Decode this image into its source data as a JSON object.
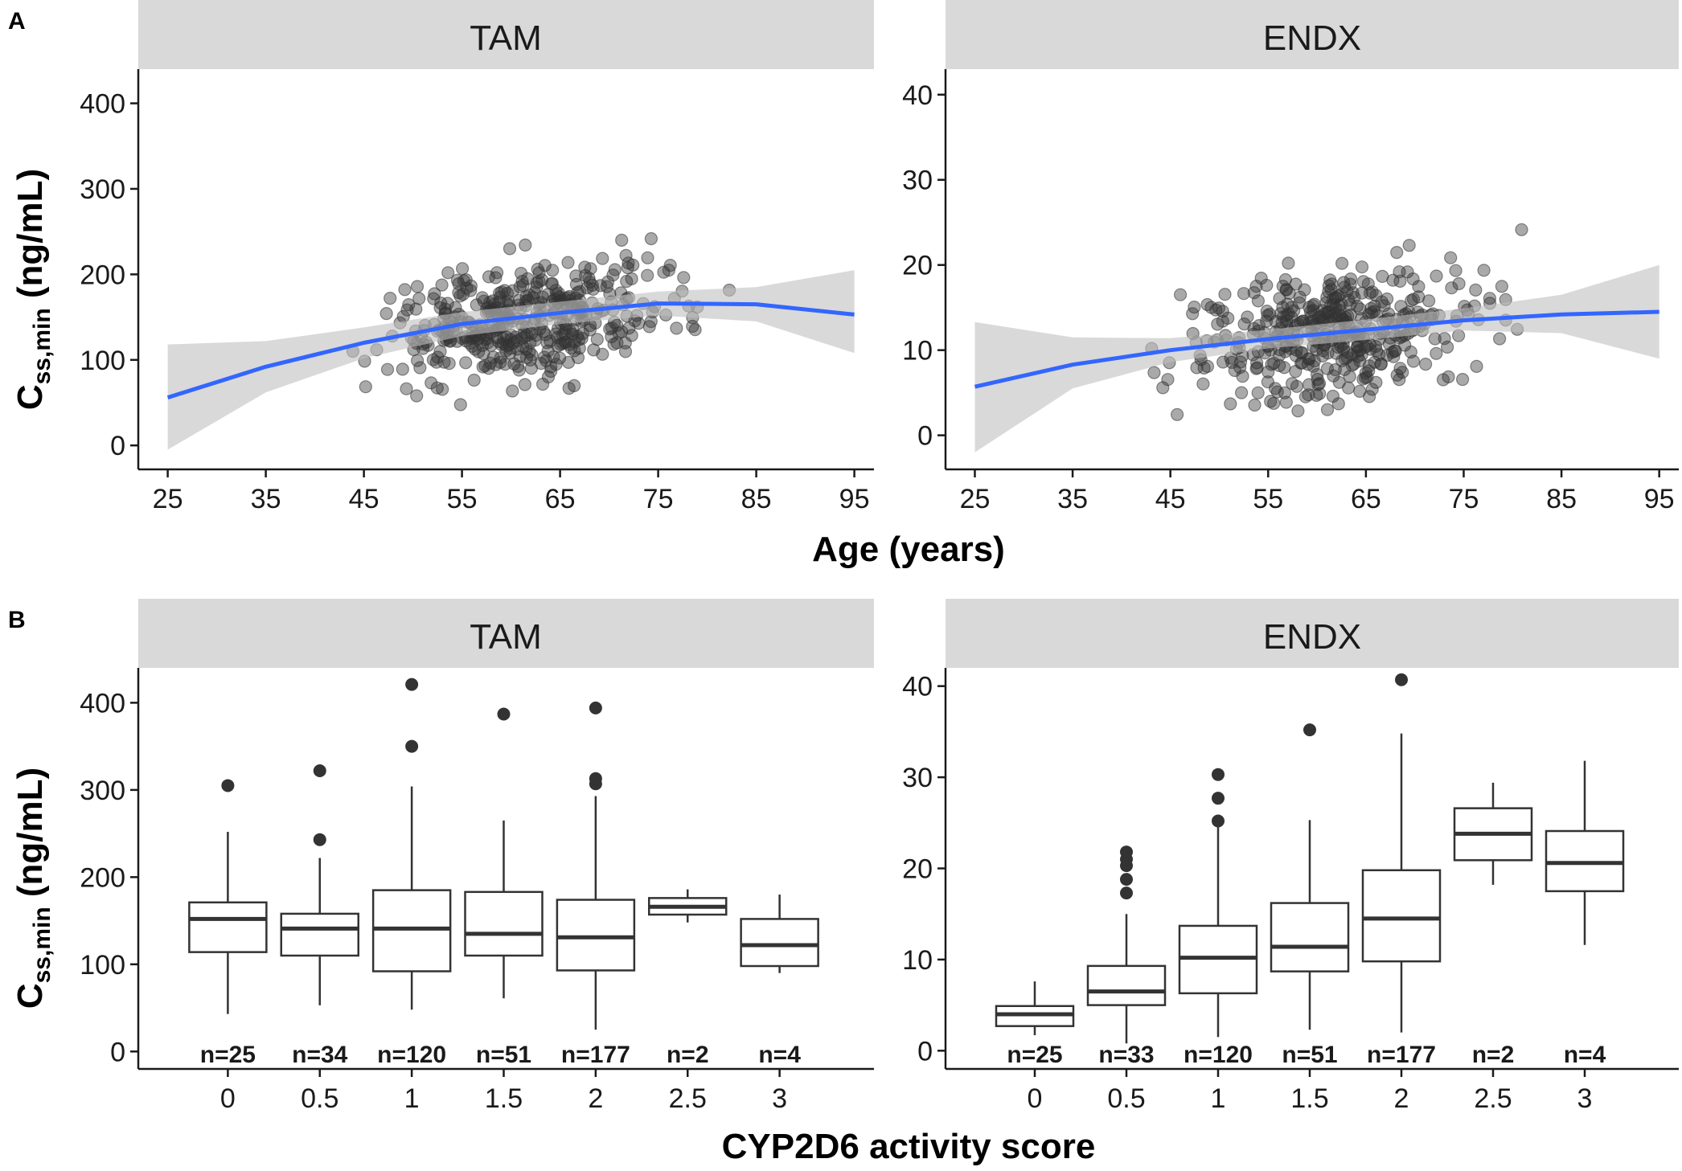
{
  "figure": {
    "panel_a_label": "A",
    "panel_b_label": "B",
    "y_label_main": "C",
    "y_label_sub": "ss,min",
    "y_label_unit": " (ng/mL)",
    "x_label_top": "Age (years)",
    "x_label_bottom": "CYP2D6 activity score",
    "colors": {
      "strip": "#d9d9d9",
      "smooth": "#3366ff",
      "ribbon": "#bfbfbf",
      "point": "#333333"
    }
  },
  "chart_data": [
    {
      "id": "A-TAM",
      "type": "scatter",
      "panel": "A",
      "title": "TAM",
      "xlabel": "Age (years)",
      "ylabel": "Css,min (ng/mL)",
      "xlim": [
        22,
        97
      ],
      "ylim": [
        -28,
        440
      ],
      "xticks": [
        25,
        35,
        45,
        55,
        65,
        75,
        85,
        95
      ],
      "yticks": [
        0,
        100,
        200,
        300,
        400
      ],
      "smooth": {
        "x": [
          25,
          35,
          45,
          55,
          65,
          75,
          85,
          95
        ],
        "y": [
          56,
          92,
          120,
          142,
          155,
          166,
          165,
          153
        ]
      },
      "ribbon": {
        "x": [
          25,
          35,
          45,
          55,
          65,
          75,
          85,
          95
        ],
        "lo": [
          -5,
          62,
          102,
          128,
          142,
          152,
          145,
          108
        ],
        "hi": [
          118,
          122,
          138,
          156,
          168,
          180,
          185,
          205
        ]
      },
      "n_points": 420
    },
    {
      "id": "A-ENDX",
      "type": "scatter",
      "panel": "A",
      "title": "ENDX",
      "xlabel": "Age (years)",
      "ylabel": "Css,min (ng/mL)",
      "xlim": [
        22,
        97
      ],
      "ylim": [
        -4,
        43
      ],
      "xticks": [
        25,
        35,
        45,
        55,
        65,
        75,
        85,
        95
      ],
      "yticks": [
        0,
        10,
        20,
        30,
        40
      ],
      "smooth": {
        "x": [
          25,
          35,
          45,
          55,
          65,
          75,
          85,
          95
        ],
        "y": [
          5.7,
          8.3,
          10,
          11.3,
          12.4,
          13.5,
          14.2,
          14.5
        ]
      },
      "ribbon": {
        "x": [
          25,
          35,
          45,
          55,
          65,
          75,
          85,
          95
        ],
        "lo": [
          -2,
          5.5,
          8.6,
          10.2,
          11.2,
          12.3,
          12,
          9
        ],
        "hi": [
          13.3,
          11.5,
          11.4,
          12.4,
          13.6,
          14.9,
          16.5,
          20
        ]
      },
      "n_points": 420
    },
    {
      "id": "B-TAM",
      "type": "box",
      "panel": "B",
      "title": "TAM",
      "xlabel": "CYP2D6 activity score",
      "ylabel": "Css,min (ng/mL)",
      "ylim": [
        -20,
        440
      ],
      "yticks": [
        0,
        100,
        200,
        300,
        400
      ],
      "categories": [
        "0",
        "0.5",
        "1",
        "1.5",
        "2",
        "2.5",
        "3"
      ],
      "n_labels": [
        "n=25",
        "n=34",
        "n=120",
        "n=51",
        "n=177",
        "n=2",
        "n=4"
      ],
      "boxes": [
        {
          "low": 43,
          "q1": 114,
          "med": 152,
          "q3": 171,
          "high": 252,
          "out": [
            305
          ]
        },
        {
          "low": 53,
          "q1": 110,
          "med": 141,
          "q3": 158,
          "high": 222,
          "out": [
            243,
            322
          ]
        },
        {
          "low": 48,
          "q1": 92,
          "med": 141,
          "q3": 185,
          "high": 304,
          "out": [
            350,
            421
          ]
        },
        {
          "low": 61,
          "q1": 110,
          "med": 135,
          "q3": 183,
          "high": 265,
          "out": [
            387
          ]
        },
        {
          "low": 25,
          "q1": 93,
          "med": 131,
          "q3": 174,
          "high": 293,
          "out": [
            307,
            313,
            394
          ]
        },
        {
          "low": 148,
          "q1": 157,
          "med": 166,
          "q3": 176,
          "high": 186,
          "out": []
        },
        {
          "low": 90,
          "q1": 98,
          "med": 122,
          "q3": 152,
          "high": 180,
          "out": []
        }
      ]
    },
    {
      "id": "B-ENDX",
      "type": "box",
      "panel": "B",
      "title": "ENDX",
      "xlabel": "CYP2D6 activity score",
      "ylabel": "Css,min (ng/mL)",
      "ylim": [
        -2,
        42
      ],
      "yticks": [
        0,
        10,
        20,
        30,
        40
      ],
      "categories": [
        "0",
        "0.5",
        "1",
        "1.5",
        "2",
        "2.5",
        "3"
      ],
      "n_labels": [
        "n=25",
        "n=33",
        "n=120",
        "n=51",
        "n=177",
        "n=2",
        "n=4"
      ],
      "boxes": [
        {
          "low": 1.7,
          "q1": 2.7,
          "med": 4,
          "q3": 4.9,
          "high": 7.6,
          "out": []
        },
        {
          "low": 0.8,
          "q1": 5,
          "med": 6.5,
          "q3": 9.3,
          "high": 15,
          "out": [
            17.3,
            18.8,
            20.3,
            21,
            21.8
          ]
        },
        {
          "low": 1.5,
          "q1": 6.3,
          "med": 10.2,
          "q3": 13.7,
          "high": 24.5,
          "out": [
            25.2,
            27.7,
            30.3
          ]
        },
        {
          "low": 2.3,
          "q1": 8.7,
          "med": 11.4,
          "q3": 16.2,
          "high": 25.3,
          "out": [
            35.2
          ]
        },
        {
          "low": 2,
          "q1": 9.8,
          "med": 14.5,
          "q3": 19.8,
          "high": 34.8,
          "out": [
            40.7
          ]
        },
        {
          "low": 18.2,
          "q1": 20.9,
          "med": 23.8,
          "q3": 26.6,
          "high": 29.4,
          "out": []
        },
        {
          "low": 11.6,
          "q1": 17.5,
          "med": 20.6,
          "q3": 24.1,
          "high": 31.8,
          "out": []
        }
      ]
    }
  ]
}
